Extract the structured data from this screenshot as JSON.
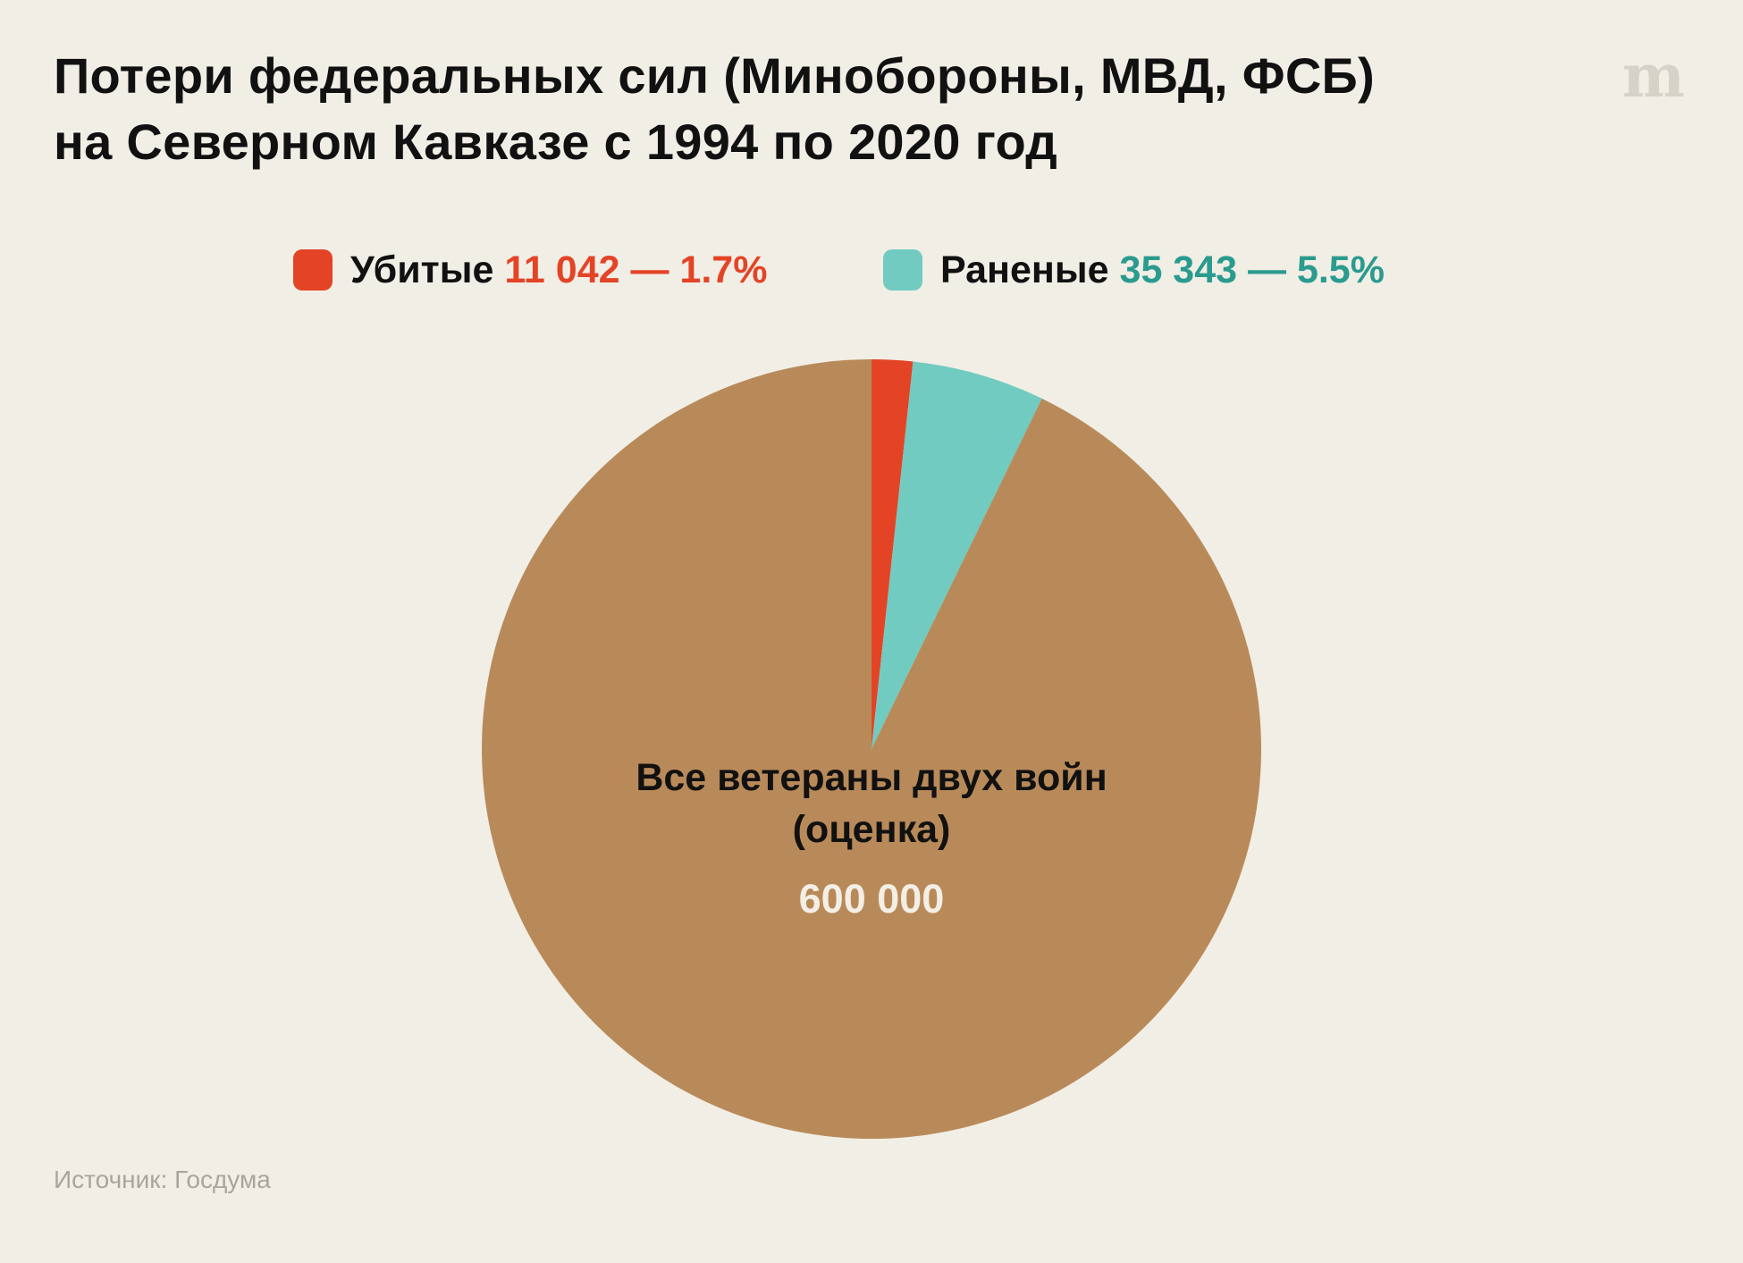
{
  "title": {
    "line1": "Потери федеральных сил (Минобороны, МВД, ФСБ)",
    "line2": "на Северном Кавказе с 1994 по 2020 год"
  },
  "logo_text": "m",
  "source": "Источник: Госдума",
  "colors": {
    "background": "#f1eee6",
    "killed": "#e44426",
    "wounded": "#71cbc1",
    "veterans": "#b98a59",
    "killed_text": "#e44426",
    "wounded_text": "#2a9b8e"
  },
  "chart_data": {
    "type": "pie",
    "title": "Потери федеральных сил (Минобороны, МВД, ФСБ) на Северном Кавказе с 1994 по 2020 год",
    "legend_position": "top",
    "total": 600000,
    "slices": [
      {
        "name": "Убитые",
        "value": 11042,
        "percent": 1.7,
        "value_label": "11 042 — 1.7%",
        "color": "#e44426"
      },
      {
        "name": "Раненые",
        "value": 35343,
        "percent": 5.5,
        "value_label": "35 343 — 5.5%",
        "color": "#71cbc1"
      },
      {
        "name": "Все ветераны двух войн (оценка)",
        "value": 600000,
        "percent": 92.8,
        "value_label": "600 000",
        "color": "#b98a59"
      }
    ],
    "center_label": {
      "line1": "Все ветераны двух войн",
      "line2": "(оценка)",
      "value": "600 000"
    }
  },
  "legend": [
    {
      "label": "Убитые",
      "value": "11 042 — 1.7%"
    },
    {
      "label": "Раненые",
      "value": "35 343 — 5.5%"
    }
  ]
}
